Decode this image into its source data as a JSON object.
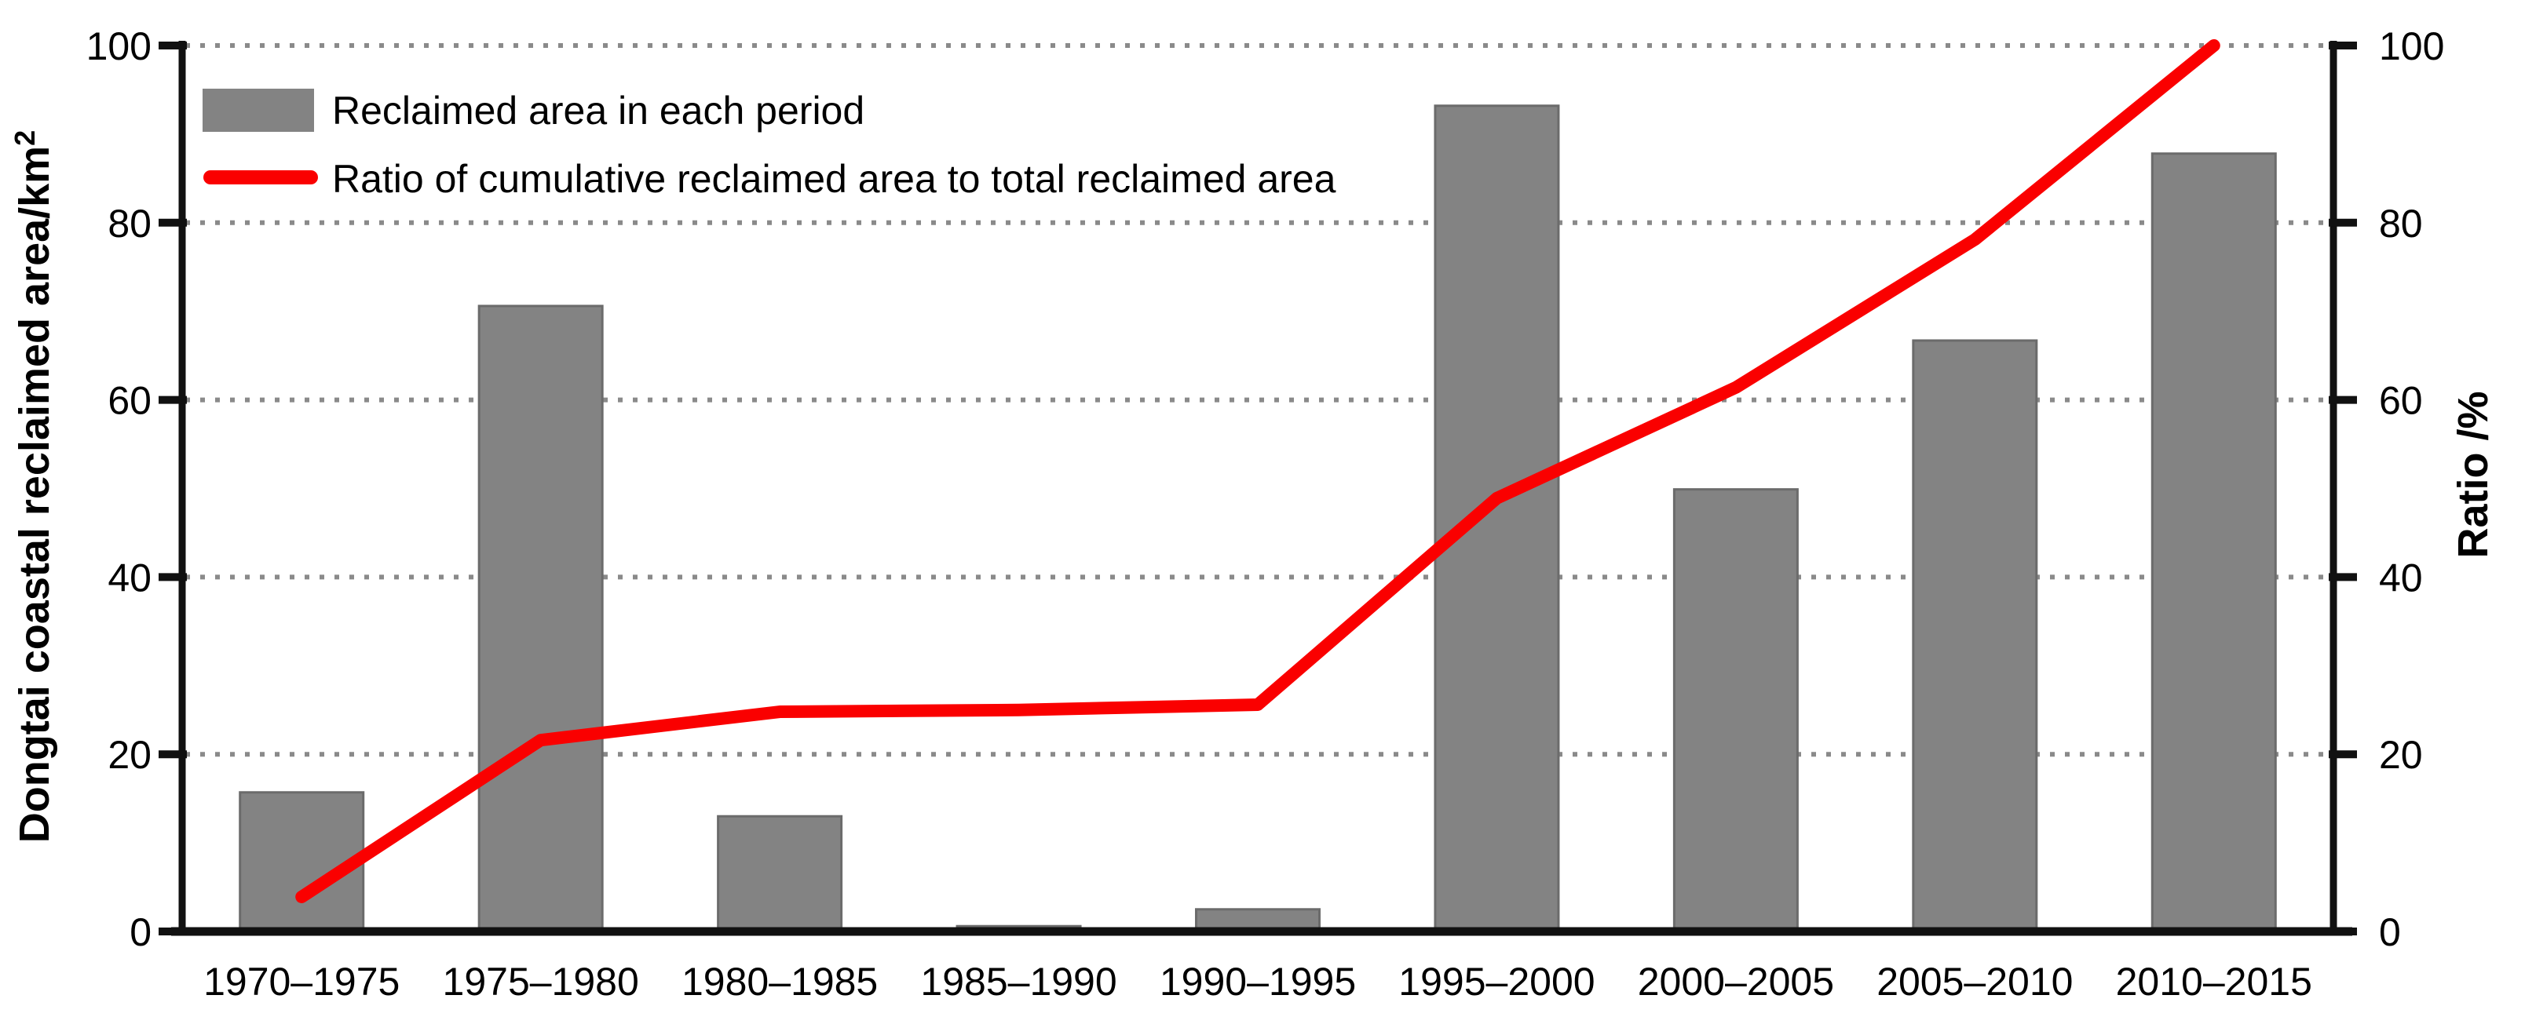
{
  "chart_data": {
    "type": "bar+line",
    "title": "",
    "categories": [
      "1970–1975",
      "1975–1980",
      "1980–1985",
      "1985–1990",
      "1990–1995",
      "1995–2000",
      "2000–2005",
      "2005–2010",
      "2010–2015"
    ],
    "series": [
      {
        "name": "Reclaimed area in each period",
        "type": "bar",
        "axis": "left",
        "values": [
          15.7,
          70.6,
          13.0,
          0.6,
          2.5,
          93.2,
          49.9,
          66.7,
          87.8
        ]
      },
      {
        "name": "Ratio of cumulative reclaimed area to total reclaimed area",
        "type": "line",
        "axis": "right",
        "values": [
          3.9,
          21.6,
          24.8,
          25.0,
          25.6,
          48.9,
          61.4,
          78.1,
          100.0
        ]
      }
    ],
    "left_axis": {
      "label": "Dongtai coastal reclaimed area/km²",
      "label_main": "Dongtai coastal reclaimed area/km",
      "label_sup": "2",
      "min": 0,
      "max": 100,
      "ticks": [
        0,
        20,
        40,
        60,
        80,
        100
      ]
    },
    "right_axis": {
      "label": "Ratio /%",
      "min": 0,
      "max": 100,
      "ticks": [
        0,
        20,
        40,
        60,
        80,
        100
      ]
    },
    "grid": {
      "horizontal": true,
      "style": "dotted",
      "at": [
        20,
        40,
        60,
        80,
        100
      ]
    },
    "legend_position": "top-left-inside"
  },
  "colors": {
    "background": "#FFFFFF",
    "bar": "#838383",
    "bar_border": "#6B6B6B",
    "line": "#FA0000",
    "grid": "#8A8A8A",
    "axis": "#111111",
    "text": "#000000"
  }
}
